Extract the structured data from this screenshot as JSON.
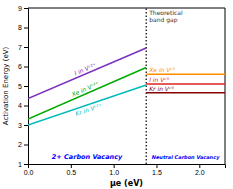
{
  "chart_data": {
    "type": "line",
    "x_label": "μe (eV)",
    "y_label": "Activation Energy (eV)",
    "xlim": [
      0,
      2.3
    ],
    "ylim": [
      1,
      9
    ],
    "xticks": [
      {
        "value": 0,
        "label": "0.0"
      },
      0.5,
      {
        "value": 1.0,
        "label": "1.0"
      },
      1.5,
      {
        "value": 2.0,
        "label": "2.0"
      }
    ],
    "yticks": [
      1,
      2,
      3,
      4,
      5,
      6,
      7,
      8,
      9
    ],
    "series": [
      {
        "name": "I in Vᶜ²⁺",
        "color": "#7B2FBE",
        "x": [
          0,
          1.38
        ],
        "values": [
          4.35,
          6.95
        ]
      },
      {
        "name": "Xe in Vᶜ²⁺",
        "color": "#00AA00",
        "x": [
          0,
          1.38
        ],
        "values": [
          3.3,
          5.95
        ]
      },
      {
        "name": "Kr in Vᶜ²⁺",
        "color": "#00BBBB",
        "x": [
          0,
          1.38
        ],
        "values": [
          3.0,
          5.05
        ]
      },
      {
        "name": "Xe in Vᶜ°",
        "color": "#FF8C00",
        "x": [
          1.38,
          2.3
        ],
        "values": [
          5.6,
          5.6
        ]
      },
      {
        "name": "I in Vᶜ°",
        "color": "#DD2222",
        "x": [
          1.38,
          2.3
        ],
        "values": [
          5.1,
          5.1
        ]
      },
      {
        "name": "Kr in Vᶜ°",
        "color": "#880000",
        "x": [
          1.38,
          2.3
        ],
        "values": [
          4.65,
          4.65
        ]
      }
    ],
    "annotations": [
      {
        "text": "Theoretical\nband gap",
        "x": 1.38
      },
      {
        "text": "2+ Carbon Vacancy"
      },
      {
        "text": "Neutral Carbon Vacancy"
      }
    ]
  }
}
